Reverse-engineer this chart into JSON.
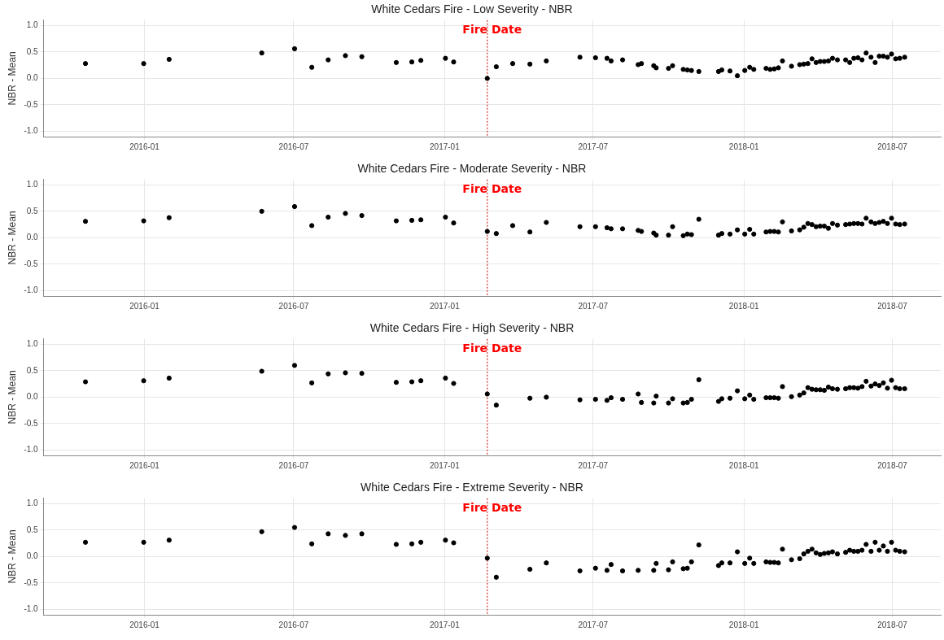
{
  "chart_data": [
    {
      "type": "scatter",
      "title": "White Cedars Fire - Low Severity - NBR",
      "ylabel": "NBR - Mean",
      "color": "#000000",
      "marker": "circle",
      "legend": false,
      "grid": true,
      "x": [
        "2015-10-21",
        "2015-12-31",
        "2016-01-31",
        "2016-05-23",
        "2016-07-02",
        "2016-07-23",
        "2016-08-12",
        "2016-09-02",
        "2016-09-22",
        "2016-11-03",
        "2016-11-22",
        "2016-12-03",
        "2017-01-02",
        "2017-01-12",
        "2017-02-22",
        "2017-03-05",
        "2017-03-25",
        "2017-04-15",
        "2017-05-05",
        "2017-06-15",
        "2017-07-04",
        "2017-07-18",
        "2017-07-23",
        "2017-08-06",
        "2017-08-25",
        "2017-08-29",
        "2017-09-13",
        "2017-09-16",
        "2017-10-01",
        "2017-10-06",
        "2017-10-19",
        "2017-10-24",
        "2017-10-29",
        "2017-11-07",
        "2017-12-01",
        "2017-12-05",
        "2017-12-15",
        "2017-12-24",
        "2018-01-02",
        "2018-01-08",
        "2018-01-13",
        "2018-01-28",
        "2018-02-02",
        "2018-02-07",
        "2018-02-12",
        "2018-02-17",
        "2018-02-28",
        "2018-03-10",
        "2018-03-15",
        "2018-03-20",
        "2018-03-25",
        "2018-03-30",
        "2018-04-04",
        "2018-04-09",
        "2018-04-14",
        "2018-04-19",
        "2018-04-25",
        "2018-05-05",
        "2018-05-10",
        "2018-05-15",
        "2018-05-20",
        "2018-05-25",
        "2018-05-30",
        "2018-06-05",
        "2018-06-10",
        "2018-06-15",
        "2018-06-20",
        "2018-06-25",
        "2018-06-30",
        "2018-07-05",
        "2018-07-10",
        "2018-07-16"
      ],
      "values": [
        0.28,
        0.28,
        0.36,
        0.48,
        0.56,
        0.21,
        0.35,
        0.43,
        0.41,
        0.3,
        0.31,
        0.34,
        0.38,
        0.31,
        0.0,
        0.22,
        0.28,
        0.27,
        0.33,
        0.4,
        0.39,
        0.38,
        0.33,
        0.35,
        0.26,
        0.28,
        0.24,
        0.2,
        0.19,
        0.24,
        0.17,
        0.16,
        0.15,
        0.13,
        0.13,
        0.16,
        0.14,
        0.05,
        0.15,
        0.21,
        0.17,
        0.19,
        0.17,
        0.18,
        0.2,
        0.33,
        0.23,
        0.26,
        0.27,
        0.28,
        0.37,
        0.3,
        0.32,
        0.32,
        0.33,
        0.38,
        0.35,
        0.35,
        0.3,
        0.38,
        0.39,
        0.35,
        0.48,
        0.4,
        0.3,
        0.42,
        0.42,
        0.4,
        0.46,
        0.37,
        0.38,
        0.4
      ],
      "xlim": [
        "2015-08-31",
        "2018-08-29"
      ],
      "xticks": [
        "2016-01",
        "2016-07",
        "2017-01",
        "2017-07",
        "2018-01",
        "2018-07"
      ],
      "ylim": [
        -1.1,
        1.1
      ],
      "yticks": [
        {
          "value": -1,
          "label": "-1.0"
        },
        {
          "value": -0.5,
          "label": "-0.5"
        },
        {
          "value": 0,
          "label": "0.0"
        },
        {
          "value": 0.5,
          "label": "0.5"
        },
        {
          "value": 1,
          "label": "1.0"
        }
      ],
      "ref_lines": [
        {
          "axis": "x",
          "value": "2017-02-22",
          "label": "Fire Date",
          "color": "#d9534f",
          "line_style": "dotted"
        }
      ]
    },
    {
      "type": "scatter",
      "title": "White Cedars Fire - Moderate Severity - NBR",
      "ylabel": "NBR - Mean",
      "color": "#000000",
      "marker": "circle",
      "legend": false,
      "grid": true,
      "x": [
        "2015-10-21",
        "2015-12-31",
        "2016-01-31",
        "2016-05-23",
        "2016-07-02",
        "2016-07-23",
        "2016-08-12",
        "2016-09-02",
        "2016-09-22",
        "2016-11-03",
        "2016-11-22",
        "2016-12-03",
        "2017-01-02",
        "2017-01-12",
        "2017-02-22",
        "2017-03-05",
        "2017-03-25",
        "2017-04-15",
        "2017-05-05",
        "2017-06-15",
        "2017-07-04",
        "2017-07-18",
        "2017-07-23",
        "2017-08-06",
        "2017-08-25",
        "2017-08-29",
        "2017-09-13",
        "2017-09-16",
        "2017-10-01",
        "2017-10-06",
        "2017-10-19",
        "2017-10-24",
        "2017-10-29",
        "2017-11-07",
        "2017-12-01",
        "2017-12-05",
        "2017-12-15",
        "2017-12-24",
        "2018-01-02",
        "2018-01-08",
        "2018-01-13",
        "2018-01-28",
        "2018-02-02",
        "2018-02-07",
        "2018-02-12",
        "2018-02-17",
        "2018-02-28",
        "2018-03-10",
        "2018-03-15",
        "2018-03-20",
        "2018-03-25",
        "2018-03-30",
        "2018-04-04",
        "2018-04-09",
        "2018-04-14",
        "2018-04-19",
        "2018-04-25",
        "2018-05-05",
        "2018-05-10",
        "2018-05-15",
        "2018-05-20",
        "2018-05-25",
        "2018-05-30",
        "2018-06-05",
        "2018-06-10",
        "2018-06-15",
        "2018-06-20",
        "2018-06-25",
        "2018-06-30",
        "2018-07-05",
        "2018-07-10",
        "2018-07-16"
      ],
      "values": [
        0.31,
        0.32,
        0.38,
        0.5,
        0.59,
        0.23,
        0.39,
        0.46,
        0.42,
        0.32,
        0.33,
        0.34,
        0.39,
        0.28,
        0.12,
        0.08,
        0.23,
        0.11,
        0.29,
        0.21,
        0.21,
        0.19,
        0.17,
        0.17,
        0.14,
        0.12,
        0.09,
        0.05,
        0.05,
        0.21,
        0.04,
        0.07,
        0.06,
        0.35,
        0.05,
        0.08,
        0.07,
        0.15,
        0.07,
        0.16,
        0.07,
        0.11,
        0.12,
        0.12,
        0.11,
        0.3,
        0.13,
        0.15,
        0.2,
        0.27,
        0.25,
        0.21,
        0.22,
        0.22,
        0.18,
        0.27,
        0.24,
        0.25,
        0.26,
        0.27,
        0.27,
        0.26,
        0.37,
        0.3,
        0.27,
        0.29,
        0.31,
        0.27,
        0.37,
        0.26,
        0.25,
        0.26
      ],
      "xlim": [
        "2015-08-31",
        "2018-08-29"
      ],
      "xticks": [
        "2016-01",
        "2016-07",
        "2017-01",
        "2017-07",
        "2018-01",
        "2018-07"
      ],
      "ylim": [
        -1.1,
        1.1
      ],
      "yticks": [
        {
          "value": -1,
          "label": "-1.0"
        },
        {
          "value": -0.5,
          "label": "-0.5"
        },
        {
          "value": 0,
          "label": "0.0"
        },
        {
          "value": 0.5,
          "label": "0.5"
        },
        {
          "value": 1,
          "label": "1.0"
        }
      ],
      "ref_lines": [
        {
          "axis": "x",
          "value": "2017-02-22",
          "label": "Fire Date",
          "color": "#d9534f",
          "line_style": "dotted"
        }
      ]
    },
    {
      "type": "scatter",
      "title": "White Cedars Fire - High Severity - NBR",
      "ylabel": "NBR - Mean",
      "color": "#000000",
      "marker": "circle",
      "legend": false,
      "grid": true,
      "x": [
        "2015-10-21",
        "2015-12-31",
        "2016-01-31",
        "2016-05-23",
        "2016-07-02",
        "2016-07-23",
        "2016-08-12",
        "2016-09-02",
        "2016-09-22",
        "2016-11-03",
        "2016-11-22",
        "2016-12-03",
        "2017-01-02",
        "2017-01-12",
        "2017-02-22",
        "2017-03-05",
        "2017-03-25",
        "2017-04-15",
        "2017-05-05",
        "2017-06-15",
        "2017-07-04",
        "2017-07-18",
        "2017-07-23",
        "2017-08-06",
        "2017-08-25",
        "2017-08-29",
        "2017-09-13",
        "2017-09-16",
        "2017-10-01",
        "2017-10-06",
        "2017-10-19",
        "2017-10-24",
        "2017-10-29",
        "2017-11-07",
        "2017-12-01",
        "2017-12-05",
        "2017-12-15",
        "2017-12-24",
        "2018-01-02",
        "2018-01-08",
        "2018-01-13",
        "2018-01-28",
        "2018-02-02",
        "2018-02-07",
        "2018-02-12",
        "2018-02-17",
        "2018-02-28",
        "2018-03-10",
        "2018-03-15",
        "2018-03-20",
        "2018-03-25",
        "2018-03-30",
        "2018-04-04",
        "2018-04-09",
        "2018-04-14",
        "2018-04-19",
        "2018-04-25",
        "2018-05-05",
        "2018-05-10",
        "2018-05-15",
        "2018-05-20",
        "2018-05-25",
        "2018-05-30",
        "2018-06-05",
        "2018-06-10",
        "2018-06-15",
        "2018-06-20",
        "2018-06-25",
        "2018-06-30",
        "2018-07-05",
        "2018-07-10",
        "2018-07-16"
      ],
      "values": [
        0.29,
        0.31,
        0.36,
        0.49,
        0.6,
        0.27,
        0.44,
        0.46,
        0.45,
        0.28,
        0.29,
        0.31,
        0.36,
        0.26,
        0.06,
        -0.15,
        null,
        -0.02,
        0.0,
        -0.05,
        -0.04,
        -0.06,
        -0.01,
        -0.04,
        0.06,
        -0.1,
        -0.11,
        0.02,
        -0.11,
        -0.03,
        -0.11,
        -0.1,
        -0.04,
        0.33,
        -0.08,
        -0.03,
        -0.02,
        0.12,
        -0.03,
        0.04,
        -0.04,
        -0.01,
        -0.01,
        -0.01,
        -0.02,
        0.2,
        0.01,
        0.04,
        0.08,
        0.18,
        0.15,
        0.14,
        0.14,
        0.13,
        0.19,
        0.16,
        0.15,
        0.16,
        0.18,
        0.18,
        0.17,
        0.2,
        0.3,
        0.21,
        0.25,
        0.22,
        0.27,
        0.17,
        0.32,
        0.18,
        0.16,
        0.16
      ],
      "xlim": [
        "2015-08-31",
        "2018-08-29"
      ],
      "xticks": [
        "2016-01",
        "2016-07",
        "2017-01",
        "2017-07",
        "2018-01",
        "2018-07"
      ],
      "ylim": [
        -1.1,
        1.1
      ],
      "yticks": [
        {
          "value": -1,
          "label": "-1.0"
        },
        {
          "value": -0.5,
          "label": "-0.5"
        },
        {
          "value": 0,
          "label": "0.0"
        },
        {
          "value": 0.5,
          "label": "0.5"
        },
        {
          "value": 1,
          "label": "1.0"
        }
      ],
      "ref_lines": [
        {
          "axis": "x",
          "value": "2017-02-22",
          "label": "Fire Date",
          "color": "#d9534f",
          "line_style": "dotted"
        }
      ]
    },
    {
      "type": "scatter",
      "title": "White Cedars Fire - Extreme Severity - NBR",
      "ylabel": "NBR - Mean",
      "color": "#000000",
      "marker": "circle",
      "legend": false,
      "grid": true,
      "x": [
        "2015-10-21",
        "2015-12-31",
        "2016-01-31",
        "2016-05-23",
        "2016-07-02",
        "2016-07-23",
        "2016-08-12",
        "2016-09-02",
        "2016-09-22",
        "2016-11-03",
        "2016-11-22",
        "2016-12-03",
        "2017-01-02",
        "2017-01-12",
        "2017-02-22",
        "2017-03-05",
        "2017-03-25",
        "2017-04-15",
        "2017-05-05",
        "2017-06-15",
        "2017-07-04",
        "2017-07-18",
        "2017-07-23",
        "2017-08-06",
        "2017-08-25",
        "2017-08-29",
        "2017-09-13",
        "2017-09-16",
        "2017-10-01",
        "2017-10-06",
        "2017-10-19",
        "2017-10-24",
        "2017-10-29",
        "2017-11-07",
        "2017-12-01",
        "2017-12-05",
        "2017-12-15",
        "2017-12-24",
        "2018-01-02",
        "2018-01-08",
        "2018-01-13",
        "2018-01-28",
        "2018-02-02",
        "2018-02-07",
        "2018-02-12",
        "2018-02-17",
        "2018-02-28",
        "2018-03-10",
        "2018-03-15",
        "2018-03-20",
        "2018-03-25",
        "2018-03-30",
        "2018-04-04",
        "2018-04-09",
        "2018-04-14",
        "2018-04-19",
        "2018-04-25",
        "2018-05-05",
        "2018-05-10",
        "2018-05-15",
        "2018-05-20",
        "2018-05-25",
        "2018-05-30",
        "2018-06-05",
        "2018-06-10",
        "2018-06-15",
        "2018-06-20",
        "2018-06-25",
        "2018-06-30",
        "2018-07-05",
        "2018-07-10",
        "2018-07-16"
      ],
      "values": [
        0.27,
        0.27,
        0.31,
        0.47,
        0.55,
        0.24,
        0.43,
        0.4,
        0.43,
        0.23,
        0.24,
        0.27,
        0.31,
        0.26,
        -0.03,
        -0.39,
        null,
        -0.24,
        -0.12,
        -0.27,
        -0.22,
        -0.26,
        -0.15,
        -0.27,
        -0.26,
        null,
        -0.26,
        -0.13,
        -0.25,
        -0.1,
        -0.23,
        -0.22,
        -0.1,
        0.22,
        -0.17,
        -0.12,
        -0.12,
        0.09,
        -0.13,
        -0.03,
        -0.13,
        -0.1,
        -0.11,
        -0.11,
        -0.12,
        0.14,
        -0.06,
        -0.04,
        0.05,
        0.1,
        0.14,
        0.07,
        0.04,
        0.06,
        0.07,
        0.09,
        0.05,
        0.08,
        0.12,
        0.1,
        0.1,
        0.12,
        0.23,
        0.1,
        0.27,
        0.12,
        0.2,
        0.1,
        0.27,
        0.12,
        0.1,
        0.09
      ],
      "xlim": [
        "2015-08-31",
        "2018-08-29"
      ],
      "xticks": [
        "2016-01",
        "2016-07",
        "2017-01",
        "2017-07",
        "2018-01",
        "2018-07"
      ],
      "ylim": [
        -1.1,
        1.1
      ],
      "yticks": [
        {
          "value": -1,
          "label": "-1.0"
        },
        {
          "value": -0.5,
          "label": "-0.5"
        },
        {
          "value": 0,
          "label": "0.0"
        },
        {
          "value": 0.5,
          "label": "0.5"
        },
        {
          "value": 1,
          "label": "1.0"
        }
      ],
      "ref_lines": [
        {
          "axis": "x",
          "value": "2017-02-22",
          "label": "Fire Date",
          "color": "#d9534f",
          "line_style": "dotted"
        }
      ]
    }
  ]
}
